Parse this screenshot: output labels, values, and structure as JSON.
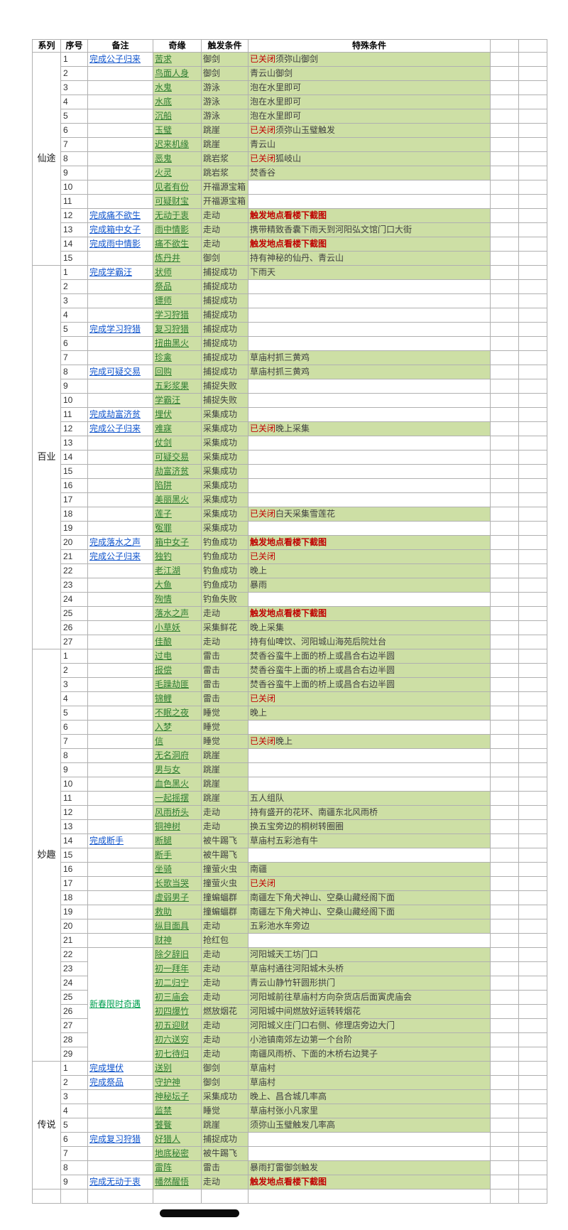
{
  "colors": {
    "cell-green": "#cddfa5",
    "link-blue": "#1155cc",
    "link-green": "#00a050",
    "enc-green": "#2f7d32",
    "alert-red": "#c00000",
    "text-dark": "#3f3f3f",
    "border": "#b0b0b0"
  },
  "table": {
    "headers": [
      "系列",
      "序号",
      "备注",
      "奇缘",
      "触发条件",
      "特殊条件",
      "",
      ""
    ],
    "sections": [
      {
        "series": "仙途",
        "rows": [
          {
            "no": "1",
            "note": "完成公子归来",
            "ns": "b",
            "enc": "苦求",
            "trig": "御剑",
            "red": "已关闭",
            "txt": "须弥山御剑"
          },
          {
            "no": "2",
            "note": "",
            "enc": "鸟面人身",
            "trig": "御剑",
            "txt": "青云山御剑"
          },
          {
            "no": "3",
            "note": "",
            "enc": "水鬼",
            "trig": "游泳",
            "txt": "泡在水里即可"
          },
          {
            "no": "4",
            "note": "",
            "enc": "水底",
            "trig": "游泳",
            "txt": "泡在水里即可"
          },
          {
            "no": "5",
            "note": "",
            "enc": "沉船",
            "trig": "游泳",
            "txt": "泡在水里即可"
          },
          {
            "no": "6",
            "note": "",
            "enc": "玉璧",
            "trig": "跳崖",
            "red": "已关闭",
            "txt": "须弥山玉璧触发"
          },
          {
            "no": "7",
            "note": "",
            "enc": "迟来机缘",
            "trig": "跳崖",
            "txt": "青云山"
          },
          {
            "no": "8",
            "note": "",
            "enc": "恶鬼",
            "trig": "跳岩浆",
            "red": "已关闭",
            "txt": "狐岐山"
          },
          {
            "no": "9",
            "note": "",
            "enc": "火灵",
            "trig": "跳岩浆",
            "txt": "焚香谷"
          },
          {
            "no": "10",
            "note": "",
            "enc": "见者有份",
            "trig": "开福源宝箱"
          },
          {
            "no": "11",
            "note": "",
            "enc": "可疑财宝",
            "trig": "开福源宝箱"
          },
          {
            "no": "12",
            "note": "完成痛不欲生",
            "ns": "b",
            "enc": "无动于衷",
            "trig": "走动",
            "red": "触发地点看楼下截图",
            "bold": true
          },
          {
            "no": "13",
            "note": "完成箱中女子",
            "ns": "b",
            "enc": "雨中情影",
            "trig": "走动",
            "txt": "携带精致香囊下雨天到河阳弘文馆门口大街"
          },
          {
            "no": "14",
            "note": "完成雨中情影",
            "ns": "b",
            "enc": "痛不欲生",
            "trig": "走动",
            "red": "触发地点看楼下截图",
            "bold": true
          },
          {
            "no": "15",
            "note": "",
            "enc": "炼丹井",
            "trig": "御剑",
            "txt": "持有神秘的仙丹、青云山"
          }
        ]
      },
      {
        "series": "百业",
        "rows": [
          {
            "no": "1",
            "note": "完成学霸汪",
            "ns": "b",
            "enc": "状师",
            "trig": "捕捉成功",
            "txt": "下雨天"
          },
          {
            "no": "2",
            "note": "",
            "enc": "祭品",
            "trig": "捕捉成功"
          },
          {
            "no": "3",
            "note": "",
            "enc": "镖师",
            "trig": "捕捉成功"
          },
          {
            "no": "4",
            "note": "",
            "enc": "学习狩猎",
            "trig": "捕捉成功"
          },
          {
            "no": "5",
            "note": "完成学习狩猎",
            "ns": "b",
            "enc": "复习狩猎",
            "trig": "捕捉成功"
          },
          {
            "no": "6",
            "note": "",
            "enc": "扭曲黑火",
            "trig": "捕捉成功"
          },
          {
            "no": "7",
            "note": "",
            "enc": "珍禽",
            "trig": "捕捉成功",
            "txt": "草庙村抓三黄鸡"
          },
          {
            "no": "8",
            "note": "完成可疑交易",
            "ns": "b",
            "enc": "回购",
            "trig": "捕捉成功",
            "txt": "草庙村抓三黄鸡"
          },
          {
            "no": "9",
            "note": "",
            "enc": "五彩浆果",
            "trig": "捕捉失败"
          },
          {
            "no": "10",
            "note": "",
            "enc": "学霸汪",
            "trig": "捕捉失败"
          },
          {
            "no": "11",
            "note": "完成劫富济贫",
            "ns": "b",
            "enc": "埋伏",
            "trig": "采集成功"
          },
          {
            "no": "12",
            "note": "完成公子归来",
            "ns": "b",
            "enc": "难寐",
            "trig": "采集成功",
            "red": "已关闭",
            "txt": "晚上采集"
          },
          {
            "no": "13",
            "note": "",
            "enc": "仗剑",
            "trig": "采集成功"
          },
          {
            "no": "14",
            "note": "",
            "enc": "可疑交易",
            "trig": "采集成功"
          },
          {
            "no": "15",
            "note": "",
            "enc": "劫富济贫",
            "trig": "采集成功"
          },
          {
            "no": "16",
            "note": "",
            "enc": "陷阱",
            "trig": "采集成功"
          },
          {
            "no": "17",
            "note": "",
            "enc": "美丽黑火",
            "trig": "采集成功"
          },
          {
            "no": "18",
            "note": "",
            "enc": "莲子",
            "trig": "采集成功",
            "red": "已关闭",
            "txt": "白天采集雪莲花"
          },
          {
            "no": "19",
            "note": "",
            "enc": "冤罪",
            "trig": "采集成功"
          },
          {
            "no": "20",
            "note": "完成落水之声",
            "ns": "b",
            "enc": "箱中女子",
            "trig": "钓鱼成功",
            "red": "触发地点看楼下截图",
            "bold": true
          },
          {
            "no": "21",
            "note": "完成公子归来",
            "ns": "b",
            "enc": "独钓",
            "trig": "钓鱼成功",
            "red": "已关闭"
          },
          {
            "no": "22",
            "note": "",
            "enc": "老江湖",
            "trig": "钓鱼成功",
            "txt": "晚上"
          },
          {
            "no": "23",
            "note": "",
            "enc": "大鱼",
            "trig": "钓鱼成功",
            "txt": "暴雨"
          },
          {
            "no": "24",
            "note": "",
            "enc": "殉情",
            "trig": "钓鱼失败"
          },
          {
            "no": "25",
            "note": "",
            "enc": "落水之声",
            "trig": "走动",
            "red": "触发地点看楼下截图",
            "bold": true
          },
          {
            "no": "26",
            "note": "",
            "enc": "小草妖",
            "trig": "采集鲜花",
            "txt": "晚上采集"
          },
          {
            "no": "27",
            "note": "",
            "enc": "佳酿",
            "trig": "走动",
            "txt": "持有仙啤饮、河阳城山海苑后院灶台"
          }
        ]
      },
      {
        "series": "妙趣",
        "rows": [
          {
            "no": "1",
            "note": "",
            "enc": "过电",
            "trig": "雷击",
            "txt": "焚香谷蛮牛上面的桥上或昌合右边半圆"
          },
          {
            "no": "2",
            "note": "",
            "enc": "报偿",
            "trig": "雷击",
            "txt": "焚香谷蛮牛上面的桥上或昌合右边半圆"
          },
          {
            "no": "3",
            "note": "",
            "enc": "毛躁劫匪",
            "trig": "雷击",
            "txt": "焚香谷蛮牛上面的桥上或昌合右边半圆"
          },
          {
            "no": "4",
            "note": "",
            "enc": "锦鲤",
            "trig": "雷击",
            "red": "已关闭"
          },
          {
            "no": "5",
            "note": "",
            "enc": "不眠之夜",
            "trig": "睡觉",
            "txt": "晚上"
          },
          {
            "no": "6",
            "note": "",
            "enc": "入梦",
            "trig": "睡觉"
          },
          {
            "no": "7",
            "note": "",
            "enc": "信",
            "trig": "睡觉",
            "red": "已关闭",
            "txt": "晚上"
          },
          {
            "no": "8",
            "note": "",
            "enc": "无名洞府",
            "trig": "跳崖"
          },
          {
            "no": "9",
            "note": "",
            "enc": "男与女",
            "trig": "跳崖"
          },
          {
            "no": "10",
            "note": "",
            "enc": "血色黑火",
            "trig": "跳崖"
          },
          {
            "no": "11",
            "note": "",
            "enc": "一起摇摆",
            "trig": "跳崖",
            "txt": "五人组队"
          },
          {
            "no": "12",
            "note": "",
            "enc": "风雨桥头",
            "trig": "走动",
            "txt": "持有盛开的花环、南疆东北风雨桥"
          },
          {
            "no": "13",
            "note": "",
            "enc": "铜神树",
            "trig": "走动",
            "txt": "换五宝旁边的桐树转圈圈"
          },
          {
            "no": "14",
            "note": "完成断手",
            "ns": "b",
            "enc": "断腿",
            "trig": "被牛踢飞",
            "txt": "草庙村五彩池有牛"
          },
          {
            "no": "15",
            "note": "",
            "enc": "断手",
            "trig": "被牛踢飞"
          },
          {
            "no": "16",
            "note": "",
            "enc": "坐骑",
            "trig": "撞萤火虫",
            "txt": "南疆"
          },
          {
            "no": "17",
            "note": "",
            "enc": "长歌当哭",
            "trig": "撞萤火虫",
            "red": "已关闭"
          },
          {
            "no": "18",
            "note": "",
            "enc": "虚弱男子",
            "trig": "撞蝙蝠群",
            "txt": "南疆左下角犬神山、空桑山藏经阁下面"
          },
          {
            "no": "19",
            "note": "",
            "enc": "救助",
            "trig": "撞蝙蝠群",
            "txt": "南疆左下角犬神山、空桑山藏经阁下面"
          },
          {
            "no": "20",
            "note": "",
            "enc": "纵目面具",
            "trig": "走动",
            "txt": "五彩池水车旁边"
          },
          {
            "no": "21",
            "note": "",
            "enc": "财神",
            "trig": "抢红包"
          },
          {
            "no": "22",
            "note": "新春限时奇遇",
            "ns": "g",
            "nr": 8,
            "enc": "除夕辞旧",
            "trig": "走动",
            "txt": "河阳城天工坊门口"
          },
          {
            "no": "23",
            "note": null,
            "enc": "初一拜年",
            "trig": "走动",
            "txt": "草庙村通往河阳城木头桥"
          },
          {
            "no": "24",
            "note": null,
            "enc": "初二归宁",
            "trig": "走动",
            "txt": "青云山静竹轩圆形拱门"
          },
          {
            "no": "25",
            "note": null,
            "enc": "初三庙会",
            "trig": "走动",
            "txt": "河阳城前往草庙村方向杂货店后面寅虎庙会"
          },
          {
            "no": "26",
            "note": null,
            "enc": "初四爆竹",
            "trig": "燃放烟花",
            "txt": "河阳城中间燃放好运转转烟花"
          },
          {
            "no": "27",
            "note": null,
            "enc": "初五迎财",
            "trig": "走动",
            "txt": "河阳城义庄门口右侧、修理店旁边大门"
          },
          {
            "no": "28",
            "note": null,
            "enc": "初六送穷",
            "trig": "走动",
            "txt": "小池镇南郊左边第一个台阶"
          },
          {
            "no": "29",
            "note": null,
            "enc": "初七待归",
            "trig": "走动",
            "txt": "南疆风雨桥、下面的木桥右边凳子"
          }
        ]
      },
      {
        "series": "传说",
        "rows": [
          {
            "no": "1",
            "note": "完成埋伏",
            "ns": "b",
            "enc": "送别",
            "trig": "御剑",
            "txt": "草庙村"
          },
          {
            "no": "2",
            "note": "完成祭品",
            "ns": "b",
            "enc": "守护神",
            "trig": "御剑",
            "txt": "草庙村"
          },
          {
            "no": "3",
            "note": "",
            "enc": "神秘坛子",
            "trig": "采集成功",
            "txt": "晚上、昌合城几率高"
          },
          {
            "no": "4",
            "note": "",
            "enc": "监禁",
            "trig": "睡觉",
            "txt": "草庙村张小凡家里"
          },
          {
            "no": "5",
            "note": "",
            "enc": "饕餮",
            "trig": "跳崖",
            "txt": "须弥山玉璧触发几率高"
          },
          {
            "no": "6",
            "note": "完成复习狩猎",
            "ns": "b",
            "enc": "好猎人",
            "trig": "捕捉成功"
          },
          {
            "no": "7",
            "note": "",
            "enc": "地底秘密",
            "trig": "被牛踢飞"
          },
          {
            "no": "8",
            "note": "",
            "enc": "雷阵",
            "trig": "雷击",
            "txt": "暴雨打雷御剑触发"
          },
          {
            "no": "9",
            "note": "完成无动于衷",
            "ns": "b",
            "enc": "幡然醒悟",
            "trig": "走动",
            "red": "触发地点看楼下截图",
            "bold": true
          }
        ]
      }
    ]
  }
}
